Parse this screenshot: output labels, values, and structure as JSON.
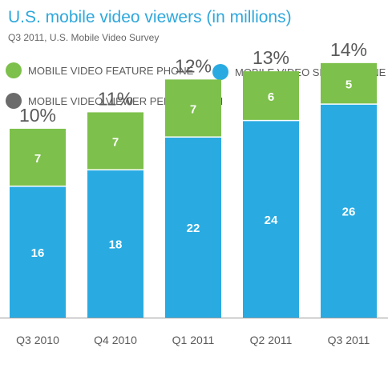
{
  "title": "U.S. mobile video viewers (in millions)",
  "subtitle": "Q3 2011, U.S. Mobile Video Survey",
  "legend": [
    {
      "label": "MOBILE VIDEO FEATURE PHONE",
      "color": "#7dc04b"
    },
    {
      "label": "MOBILE VIDEO SMARTPHONE",
      "color": "#29abe2"
    },
    {
      "label": "MOBILE VIDEO VIEWER PENETRATION",
      "color": "#6b6b6b"
    }
  ],
  "chart_data": {
    "type": "bar",
    "stacked": true,
    "categories": [
      "Q3 2010",
      "Q4 2010",
      "Q1 2011",
      "Q2 2011",
      "Q3 2011"
    ],
    "series": [
      {
        "name": "MOBILE VIDEO SMARTPHONE",
        "values": [
          16,
          18,
          22,
          24,
          26
        ],
        "color": "#29abe2"
      },
      {
        "name": "MOBILE VIDEO FEATURE PHONE",
        "values": [
          7,
          7,
          7,
          6,
          5
        ],
        "color": "#7dc04b"
      }
    ],
    "penetration": [
      "10%",
      "11%",
      "12%",
      "13%",
      "14%"
    ],
    "ylim": [
      0,
      38
    ],
    "grid": false
  }
}
